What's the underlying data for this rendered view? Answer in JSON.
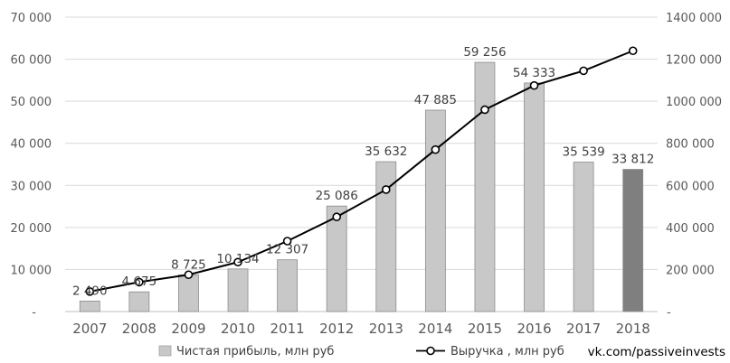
{
  "chart_data": {
    "type": "bar",
    "categories": [
      "2007",
      "2008",
      "2009",
      "2010",
      "2011",
      "2012",
      "2013",
      "2014",
      "2015",
      "2016",
      "2017",
      "2018"
    ],
    "series": [
      {
        "name": "Чистая прибыль, млн руб",
        "type": "bar",
        "axis": "left",
        "values": [
          2490,
          4675,
          8725,
          10134,
          12307,
          25086,
          35632,
          47885,
          59256,
          54333,
          35539,
          33812
        ],
        "data_labels": [
          "2 490",
          "4 675",
          "8 725",
          "10 134",
          "12 307",
          "25 086",
          "35 632",
          "47 885",
          "59 256",
          "54 333",
          "35 539",
          "33 812"
        ],
        "color": "#c8c8c8",
        "highlight_color": "#7f7f7f",
        "highlight_index": 11
      },
      {
        "name": "Выручка , млн руб",
        "type": "line",
        "axis": "right",
        "values": [
          95000,
          140000,
          175000,
          235000,
          335000,
          450000,
          580000,
          770000,
          960000,
          1075000,
          1145000,
          1240000
        ],
        "color": "#000000"
      }
    ],
    "y_left": {
      "lim": [
        0,
        70000
      ],
      "ticks": [
        0,
        10000,
        20000,
        30000,
        40000,
        50000,
        60000,
        70000
      ],
      "tick_labels": [
        "-",
        "10 000",
        "20 000",
        "30 000",
        "40 000",
        "50 000",
        "60 000",
        "70 000"
      ]
    },
    "y_right": {
      "lim": [
        0,
        1400000
      ],
      "ticks": [
        0,
        200000,
        400000,
        600000,
        800000,
        1000000,
        1200000,
        1400000
      ],
      "tick_labels": [
        "-",
        "200 000",
        "400 000",
        "600 000",
        "800 000",
        "1000 000",
        "1200 000",
        "1400 000"
      ]
    },
    "grid": true,
    "legend_position": "bottom"
  },
  "credit": "vk.com/passiveinvests"
}
